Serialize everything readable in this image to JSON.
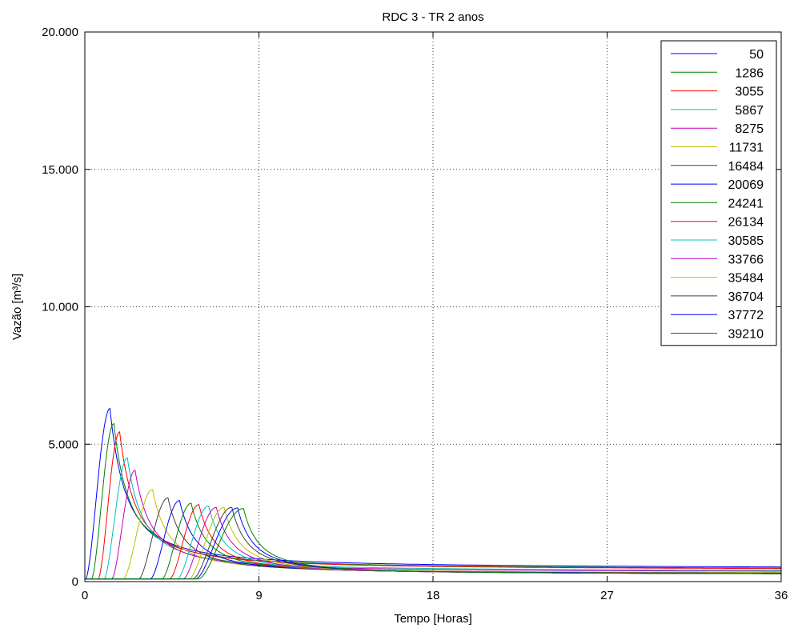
{
  "chart_data": {
    "type": "line",
    "title": "RDC 3 - TR 2 anos",
    "xlabel": "Tempo [Horas]",
    "ylabel": "Vazão [m³/s]",
    "xlim": [
      0,
      36
    ],
    "ylim": [
      0,
      20000
    ],
    "xticks": [
      0,
      9,
      18,
      27,
      36
    ],
    "yticks": [
      0,
      5000,
      10000,
      15000,
      20000
    ],
    "yticklabels": [
      "0",
      "5.000",
      "10.000",
      "15.000",
      "20.000"
    ],
    "grid": true,
    "legend_position": "top-right",
    "series": [
      {
        "name": "50",
        "color": "#0000ff",
        "start": 0.05,
        "peak_t": 1.3,
        "peak_q": 6300
      },
      {
        "name": "1286",
        "color": "#008000",
        "start": 0.35,
        "peak_t": 1.5,
        "peak_q": 5750
      },
      {
        "name": "3055",
        "color": "#ff0000",
        "start": 0.7,
        "peak_t": 1.8,
        "peak_q": 5450
      },
      {
        "name": "5867",
        "color": "#00bfbf",
        "start": 1.0,
        "peak_t": 2.2,
        "peak_q": 4500
      },
      {
        "name": "8275",
        "color": "#bf00bf",
        "start": 1.4,
        "peak_t": 2.6,
        "peak_q": 4050
      },
      {
        "name": "11731",
        "color": "#bfbf00",
        "start": 2.0,
        "peak_t": 3.5,
        "peak_q": 3350
      },
      {
        "name": "16484",
        "color": "#404040",
        "start": 2.8,
        "peak_t": 4.3,
        "peak_q": 3050
      },
      {
        "name": "20069",
        "color": "#0000ff",
        "start": 3.4,
        "peak_t": 4.9,
        "peak_q": 2950
      },
      {
        "name": "24241",
        "color": "#008000",
        "start": 4.0,
        "peak_t": 5.5,
        "peak_q": 2850
      },
      {
        "name": "26134",
        "color": "#ff0000",
        "start": 4.4,
        "peak_t": 5.9,
        "peak_q": 2800
      },
      {
        "name": "30585",
        "color": "#00bfbf",
        "start": 4.8,
        "peak_t": 6.4,
        "peak_q": 2750
      },
      {
        "name": "33766",
        "color": "#bf00bf",
        "start": 5.1,
        "peak_t": 6.8,
        "peak_q": 2700
      },
      {
        "name": "35484",
        "color": "#bfbf00",
        "start": 5.4,
        "peak_t": 7.2,
        "peak_q": 2700
      },
      {
        "name": "36704",
        "color": "#404040",
        "start": 5.6,
        "peak_t": 7.6,
        "peak_q": 2700
      },
      {
        "name": "37772",
        "color": "#0000ff",
        "start": 5.75,
        "peak_t": 7.9,
        "peak_q": 2680
      },
      {
        "name": "39210",
        "color": "#008000",
        "start": 5.9,
        "peak_t": 8.2,
        "peak_q": 2660
      }
    ]
  }
}
